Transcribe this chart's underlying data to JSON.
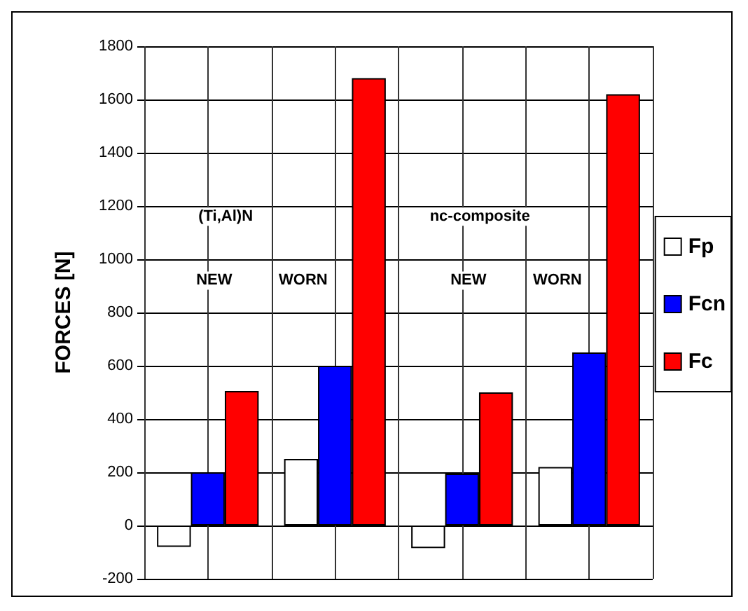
{
  "chart_data": {
    "type": "bar",
    "ylabel": "FORCES [N]",
    "categories": [
      null,
      null,
      null,
      null
    ],
    "series": [
      {
        "name": "Fp",
        "color": "#ffffff",
        "values": [
          -80,
          250,
          -85,
          220
        ]
      },
      {
        "name": "Fcn",
        "color": "#0000ff",
        "values": [
          200,
          600,
          195,
          650
        ]
      },
      {
        "name": "Fc",
        "color": "#ff0000",
        "values": [
          505,
          1680,
          500,
          1620
        ]
      }
    ],
    "ylim": [
      -200,
      1800
    ],
    "yticks": [
      -200,
      0,
      200,
      400,
      600,
      800,
      1000,
      1200,
      1400,
      1600,
      1800
    ],
    "grid": true,
    "legend": "right",
    "annotations": [
      "(Ti,Al)N",
      "NEW",
      "WORN",
      "nc-composite",
      "NEW",
      "WORN"
    ]
  }
}
